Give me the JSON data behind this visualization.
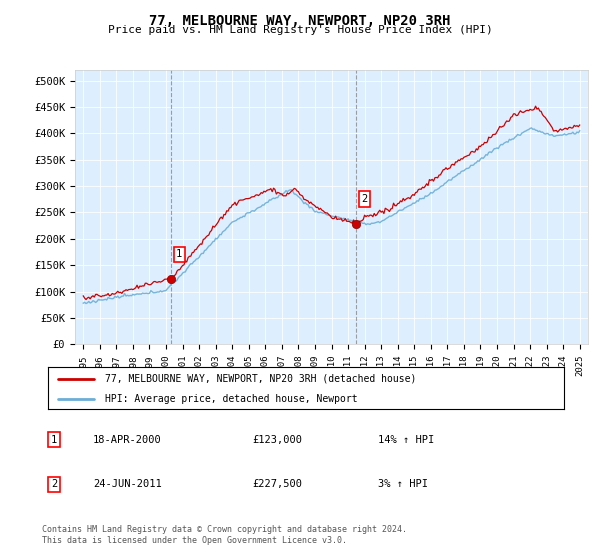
{
  "title": "77, MELBOURNE WAY, NEWPORT, NP20 3RH",
  "subtitle": "Price paid vs. HM Land Registry's House Price Index (HPI)",
  "footer": "Contains HM Land Registry data © Crown copyright and database right 2024.\nThis data is licensed under the Open Government Licence v3.0.",
  "legend_line1": "77, MELBOURNE WAY, NEWPORT, NP20 3RH (detached house)",
  "legend_line2": "HPI: Average price, detached house, Newport",
  "sale1_date": "18-APR-2000",
  "sale1_price": "£123,000",
  "sale1_hpi": "14% ↑ HPI",
  "sale2_date": "24-JUN-2011",
  "sale2_price": "£227,500",
  "sale2_hpi": "3% ↑ HPI",
  "hpi_color": "#6baed6",
  "price_color": "#cc0000",
  "bg_color": "#ddeeff",
  "sale1_x": 2000.3,
  "sale1_y": 123000,
  "sale2_x": 2011.5,
  "sale2_y": 227500,
  "dashed_line1_x": 2000.3,
  "dashed_line2_x": 2011.5,
  "ylim_max": 520000,
  "ylim_min": 0,
  "xlim_min": 1994.5,
  "xlim_max": 2025.5,
  "yticks": [
    0,
    50000,
    100000,
    150000,
    200000,
    250000,
    300000,
    350000,
    400000,
    450000,
    500000
  ],
  "ytick_labels": [
    "£0",
    "£50K",
    "£100K",
    "£150K",
    "£200K",
    "£250K",
    "£300K",
    "£350K",
    "£400K",
    "£450K",
    "£500K"
  ],
  "xticks": [
    1995,
    1996,
    1997,
    1998,
    1999,
    2000,
    2001,
    2002,
    2003,
    2004,
    2005,
    2006,
    2007,
    2008,
    2009,
    2010,
    2011,
    2012,
    2013,
    2014,
    2015,
    2016,
    2017,
    2018,
    2019,
    2020,
    2021,
    2022,
    2023,
    2024,
    2025
  ]
}
